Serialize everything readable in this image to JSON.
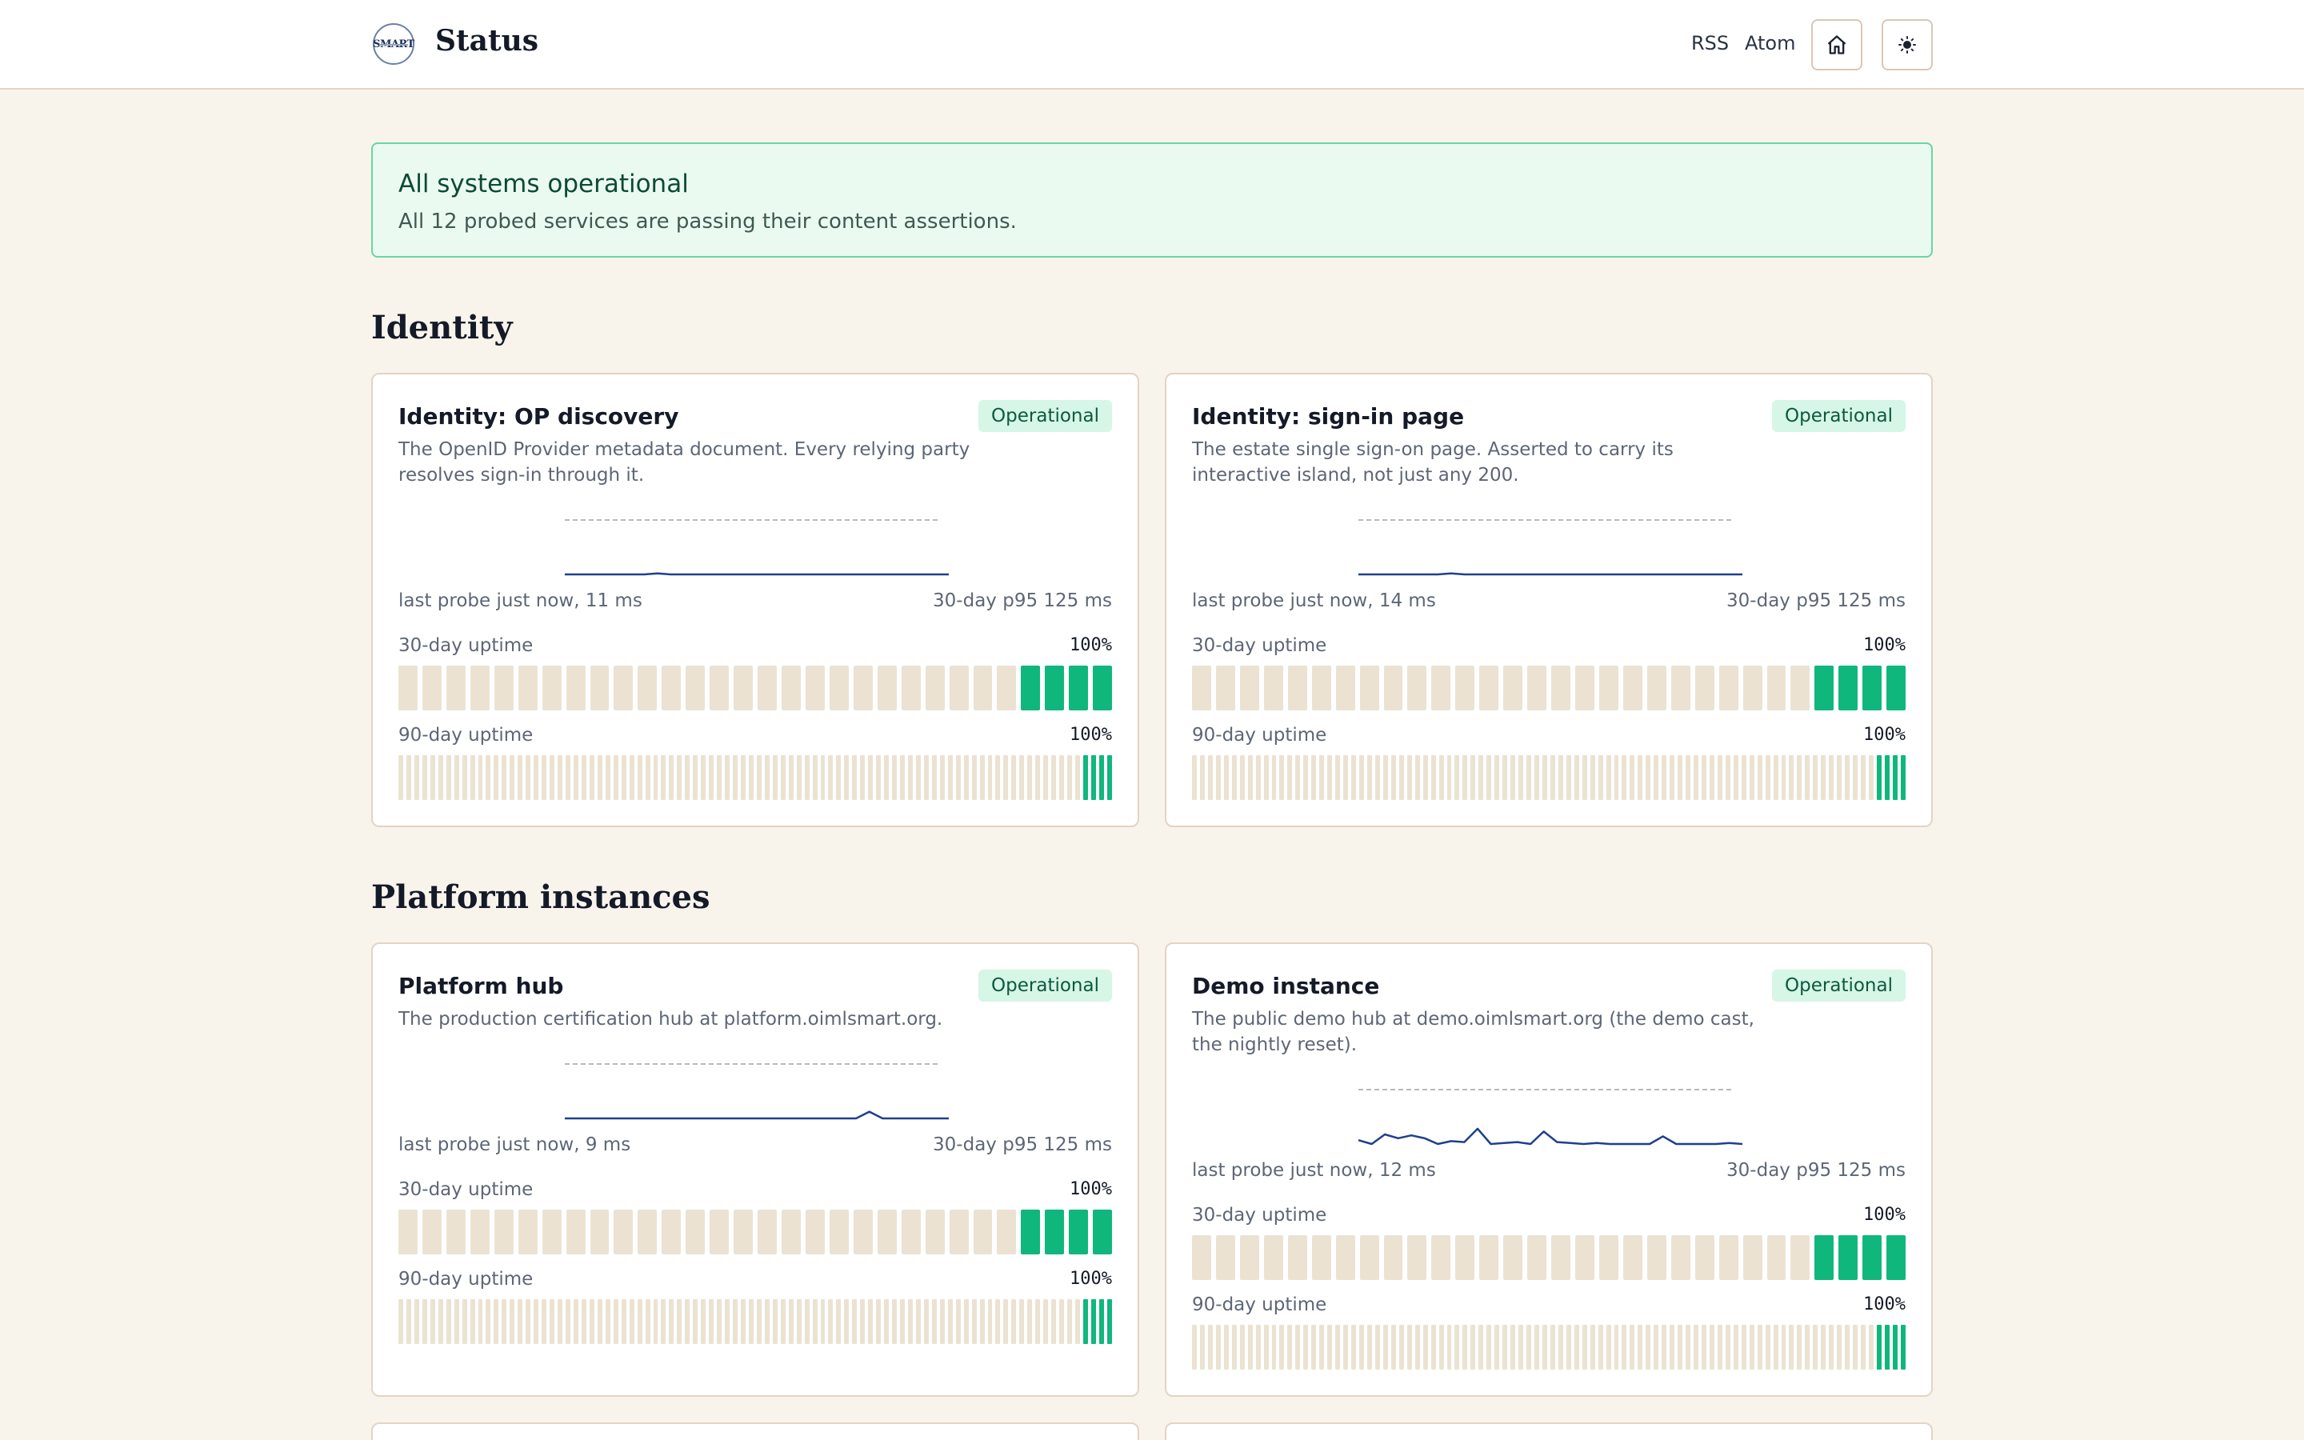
{
  "header": {
    "logo_text": "SMART",
    "title": "Status",
    "links": [
      "RSS",
      "Atom"
    ],
    "home_icon": "home-icon",
    "theme_icon": "sun-icon"
  },
  "banner": {
    "title": "All systems operational",
    "subtitle": "All 12 probed services are passing their content assertions."
  },
  "colors": {
    "up": "#10b77d",
    "empty": "#ebe2d2",
    "spark": "#1f3f8f"
  },
  "sections": [
    {
      "title": "Identity",
      "cards": [
        {
          "title": "Identity: OP discovery",
          "status": "Operational",
          "description": "The OpenID Provider metadata document. Every relying party resolves sign-in through it.",
          "last_probe": "last probe just now, 11 ms",
          "p95": "30-day p95 125 ms",
          "uptime30_label": "30-day uptime",
          "uptime30_pct": "100%",
          "uptime90_label": "90-day uptime",
          "uptime90_pct": "100%",
          "spark": [
            11,
            11,
            11,
            11,
            11,
            11,
            11,
            12,
            11,
            11,
            11,
            11,
            11,
            11,
            11,
            11,
            11,
            11,
            11,
            11,
            11,
            11,
            11,
            11,
            11,
            11,
            11,
            11,
            11,
            11
          ]
        },
        {
          "title": "Identity: sign-in page",
          "status": "Operational",
          "description": "The estate single sign-on page. Asserted to carry its interactive island, not just any 200.",
          "last_probe": "last probe just now, 14 ms",
          "p95": "30-day p95 125 ms",
          "uptime30_label": "30-day uptime",
          "uptime30_pct": "100%",
          "uptime90_label": "90-day uptime",
          "uptime90_pct": "100%",
          "spark": [
            14,
            14,
            14,
            14,
            14,
            14,
            14,
            15,
            14,
            14,
            14,
            14,
            14,
            14,
            14,
            14,
            14,
            14,
            14,
            14,
            14,
            14,
            14,
            14,
            14,
            14,
            14,
            14,
            14,
            14
          ]
        }
      ]
    },
    {
      "title": "Platform instances",
      "cards": [
        {
          "title": "Platform hub",
          "status": "Operational",
          "description": "The production certification hub at platform.oimlsmart.org.",
          "last_probe": "last probe just now, 9 ms",
          "p95": "30-day p95 125 ms",
          "uptime30_label": "30-day uptime",
          "uptime30_pct": "100%",
          "uptime90_label": "90-day uptime",
          "uptime90_pct": "100%",
          "spark": [
            9,
            9,
            9,
            9,
            9,
            9,
            9,
            9,
            9,
            9,
            9,
            9,
            9,
            9,
            9,
            9,
            9,
            9,
            9,
            9,
            9,
            9,
            9,
            16,
            9,
            9,
            9,
            9,
            9,
            9
          ]
        },
        {
          "title": "Demo instance",
          "status": "Operational",
          "description": "The public demo hub at demo.oimlsmart.org (the demo cast, the nightly reset).",
          "last_probe": "last probe just now, 12 ms",
          "p95": "30-day p95 125 ms",
          "uptime30_label": "30-day uptime",
          "uptime30_pct": "100%",
          "uptime90_label": "90-day uptime",
          "uptime90_pct": "100%",
          "spark": [
            18,
            14,
            24,
            20,
            23,
            20,
            14,
            17,
            16,
            30,
            14,
            15,
            16,
            14,
            27,
            16,
            15,
            14,
            15,
            14,
            14,
            14,
            14,
            22,
            14,
            14,
            14,
            14,
            15,
            14
          ]
        }
      ]
    }
  ]
}
